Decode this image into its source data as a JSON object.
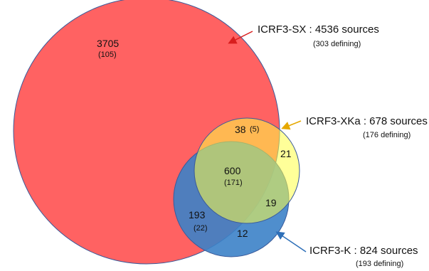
{
  "sets": [
    {
      "name": "ICRF3-SX",
      "title": "ICRF3-SX : 4536 sources",
      "note": "(303 defining)",
      "color": "#ff5a5a",
      "arrow_color": "#d81e1e"
    },
    {
      "name": "ICRF3-XKa",
      "title": "ICRF3-XKa : 678 sources",
      "note": "(176 defining)",
      "color": "#ffff46",
      "arrow_color": "#e6a800"
    },
    {
      "name": "ICRF3-K",
      "title": "ICRF3-K : 824 sources",
      "note": "(193 defining)",
      "color": "#3c82c8",
      "arrow_color": "#2d6fb8"
    }
  ],
  "regions": {
    "sx_only": {
      "count": "3705",
      "defining": "(105)"
    },
    "sx_xka": {
      "count": "38",
      "defining": "(5)"
    },
    "xka_only": {
      "count": "21"
    },
    "all_three": {
      "count": "600",
      "defining": "(171)"
    },
    "xka_k": {
      "count": "19"
    },
    "sx_k": {
      "count": "193",
      "defining": "(22)"
    },
    "k_only": {
      "count": "12"
    }
  }
}
